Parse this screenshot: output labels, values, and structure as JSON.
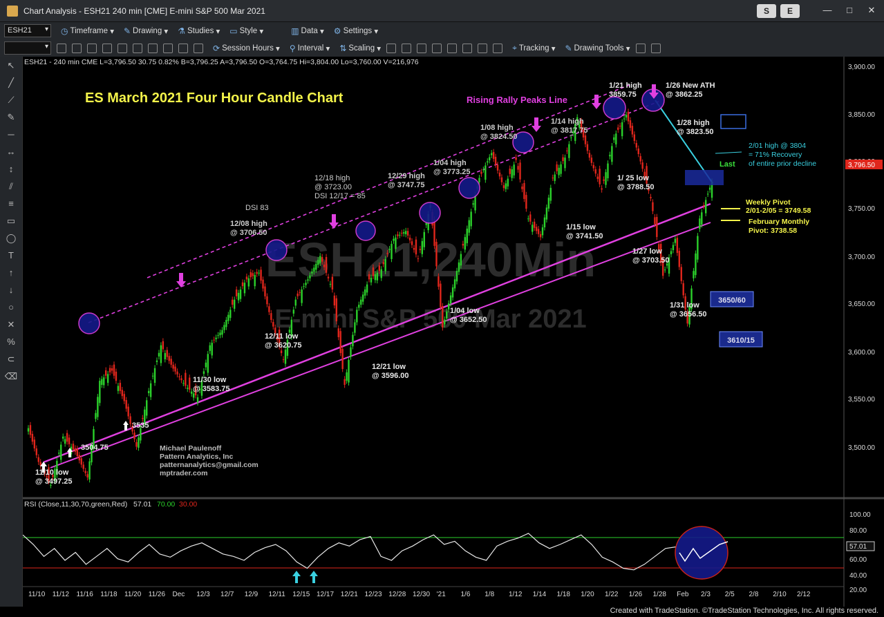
{
  "window": {
    "title": "Chart Analysis - ESH21 240 min [CME] E-mini S&P 500 Mar 2021",
    "sym_buttons": [
      "S",
      "E"
    ]
  },
  "toolbar1": {
    "symbol": "ESH21",
    "items": [
      "Timeframe",
      "Drawing",
      "Studies",
      "Style",
      "Data",
      "Settings"
    ]
  },
  "toolbar2": {
    "items": [
      "Session Hours",
      "Interval",
      "Scaling",
      "Tracking",
      "Drawing Tools"
    ]
  },
  "header_info": "ESH21 - 240 min  CME  L=3,796.50  30.75  0.82%  B=3,796.25  A=3,796.50  O=3,764.75  Hi=3,804.00  Lo=3,760.00  V=216,976",
  "watermark": {
    "line1": "ESH21,240Min",
    "line2": "E-mini S&P 500 Mar 2021"
  },
  "footer": "Created with TradeStation. ©TradeStation Technologies, Inc. All rights reserved.",
  "chart_data": {
    "type": "line",
    "title": "ES March 2021 Four Hour Candle Chart",
    "y_ticks": [
      "3,900.00",
      "3,850.00",
      "3,800.00",
      "3,750.00",
      "3,700.00",
      "3,650.00",
      "3,600.00",
      "3,550.00",
      "3,500.00"
    ],
    "ylim": [
      3470,
      3910
    ],
    "x_ticks": [
      "11/10",
      "11/12",
      "11/16",
      "11/18",
      "11/20",
      "11/26",
      "Dec",
      "12/3",
      "12/7",
      "12/9",
      "12/11",
      "12/15",
      "12/17",
      "12/21",
      "12/23",
      "12/28",
      "12/30",
      "'21",
      "1/6",
      "1/8",
      "1/12",
      "1/14",
      "1/18",
      "1/20",
      "1/22",
      "1/26",
      "1/28",
      "Feb",
      "2/3",
      "2/5",
      "2/8",
      "2/10",
      "2/12"
    ],
    "last_price_label": "3,796.50",
    "last_label": "Last",
    "series": [
      {
        "values": [
          3560,
          3520,
          3497.25,
          3545,
          3530,
          3504.75,
          3600,
          3610,
          3580,
          3535,
          3590,
          3635,
          3612,
          3595,
          3583.75,
          3635,
          3650,
          3680,
          3700,
          3706.5,
          3660,
          3620.75,
          3680,
          3700,
          3723,
          3690,
          3596,
          3670,
          3700,
          3710,
          3740,
          3747.75,
          3720,
          3773.25,
          3652.5,
          3700,
          3750,
          3800,
          3824.5,
          3790,
          3817.75,
          3760,
          3741.5,
          3800,
          3820,
          3859.75,
          3820,
          3788.5,
          3840,
          3862.25,
          3823.5,
          3780,
          3703.5,
          3740,
          3656.5,
          3760,
          3796.5
        ]
      }
    ],
    "annotations": [
      {
        "text": "11/10 low",
        "text2": "@ 3497.25"
      },
      {
        "text": "3504.75"
      },
      {
        "text": "3535"
      },
      {
        "text": "11/30 low",
        "text2": "@ 3583.75"
      },
      {
        "text": "12/08 high",
        "text2": "@ 3706.50"
      },
      {
        "text": "DSI 83"
      },
      {
        "text": "12/11 low",
        "text2": "@ 3620.75"
      },
      {
        "text": "12/18 high",
        "text2": "@ 3723.00",
        "text3": "DSI 12/17 = 85"
      },
      {
        "text": "12/21 low",
        "text2": "@ 3596.00"
      },
      {
        "text": "12/29 high",
        "text2": "@ 3747.75"
      },
      {
        "text": "1/04 high",
        "text2": "@ 3773.25"
      },
      {
        "text": "1/04 low",
        "text2": "@ 3652.50"
      },
      {
        "text": "1/08 high",
        "text2": "@ 3824.50"
      },
      {
        "text": "1/14  high",
        "text2": "@ 3817.75"
      },
      {
        "text": "1/15 low",
        "text2": "@ 3741.50"
      },
      {
        "text": "1/21 high",
        "text2": "3859.75"
      },
      {
        "text": "1/26 New ATH",
        "text2": "@ 3862.25"
      },
      {
        "text": "1/ 25 low",
        "text2": "@ 3788.50"
      },
      {
        "text": "1/28 high",
        "text2": "@ 3823.50"
      },
      {
        "text": "1/27 low",
        "text2": "@ 3703.50"
      },
      {
        "text": "1/31 low",
        "text2": "@ 3656.50"
      }
    ],
    "rising_label": "Rising Rally Peaks Line",
    "recovery_note": [
      "2/01 high @ 3804",
      "= 71% Recovery",
      "of entire prior decline"
    ],
    "weekly_pivot": [
      "Weekly Pivot",
      "2/01-2/05 = 3749.58"
    ],
    "monthly_pivot": [
      "February Monthly",
      "Pivot: 3738.58"
    ],
    "boxes": [
      "3650/60",
      "3610/15"
    ],
    "credit": [
      "Michael Paulenoff",
      "Pattern Analytics, Inc",
      "patternanalytics@gmail.com",
      "mptrader.com"
    ],
    "colors": {
      "up": "#2bd12b",
      "down": "#e0261c",
      "magenta": "#e040e0",
      "cyan": "#3ad0e0",
      "yellow": "#f3f34a",
      "navy": "#1a1f8c"
    }
  },
  "rsi": {
    "label": "RSI (Close,11,30,70,green,Red)",
    "value": "57.01",
    "upper": "70.00",
    "lower": "30.00",
    "ticks": [
      "100.00",
      "80.00",
      "60.00",
      "40.00",
      "20.00"
    ],
    "series": [
      72,
      60,
      45,
      55,
      40,
      50,
      35,
      45,
      55,
      42,
      38,
      50,
      60,
      48,
      44,
      52,
      58,
      62,
      55,
      48,
      45,
      40,
      50,
      56,
      60,
      52,
      38,
      30,
      44,
      55,
      62,
      58,
      66,
      70,
      45,
      40,
      52,
      58,
      66,
      72,
      60,
      64,
      52,
      44,
      40,
      58,
      64,
      68,
      74,
      62,
      55,
      60,
      66,
      72,
      60,
      44,
      38,
      30,
      28,
      35,
      45,
      55,
      57
    ]
  }
}
